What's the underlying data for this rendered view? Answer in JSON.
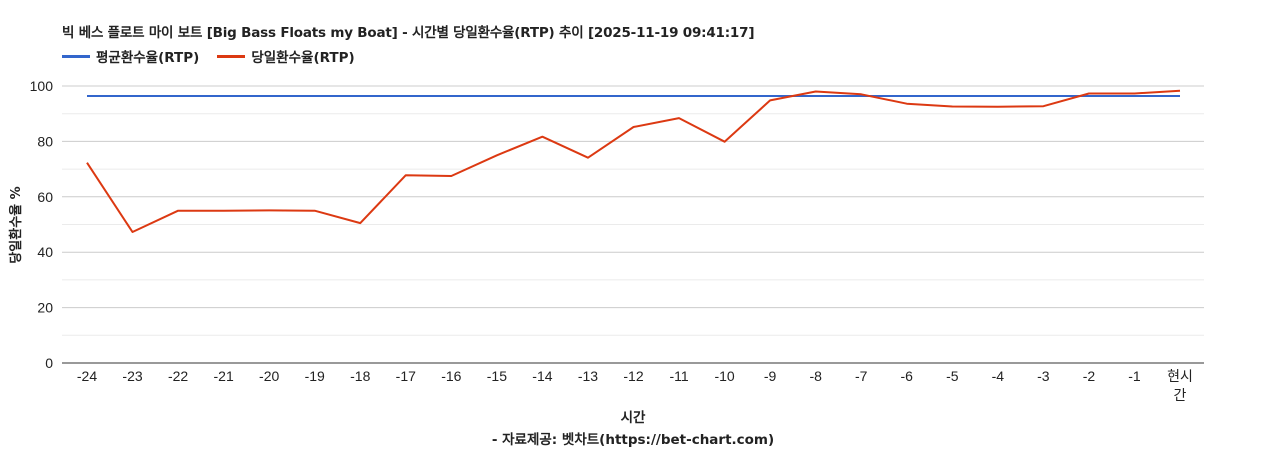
{
  "chart_data": {
    "type": "line",
    "title": "빅 베스 플로트 마이 보트 [Big Bass Floats my Boat] - 시간별 당일환수율(RTP) 추이 [2025-11-19 09:41:17]",
    "xlabel": "시간",
    "ylabel": "당일환수율 %",
    "source": "- 자료제공: 벳차트(https://bet-chart.com)",
    "categories": [
      "-24",
      "-23",
      "-22",
      "-21",
      "-20",
      "-19",
      "-18",
      "-17",
      "-16",
      "-15",
      "-14",
      "-13",
      "-12",
      "-11",
      "-10",
      "-9",
      "-8",
      "-7",
      "-6",
      "-5",
      "-4",
      "-3",
      "-2",
      "-1",
      "현시간"
    ],
    "series": [
      {
        "name": "평균환수율(RTP)",
        "color": "#3366cc",
        "values": [
          96.4,
          96.4,
          96.4,
          96.4,
          96.4,
          96.4,
          96.4,
          96.4,
          96.4,
          96.4,
          96.4,
          96.4,
          96.4,
          96.4,
          96.4,
          96.4,
          96.4,
          96.4,
          96.4,
          96.4,
          96.4,
          96.4,
          96.4,
          96.4,
          96.4
        ]
      },
      {
        "name": "당일환수율(RTP)",
        "color": "#dc3912",
        "values": [
          72.3,
          47.3,
          55.0,
          55.0,
          55.1,
          55.0,
          50.5,
          67.8,
          67.5,
          75.0,
          81.7,
          74.1,
          85.2,
          88.4,
          79.9,
          94.8,
          98.0,
          97.0,
          93.6,
          92.6,
          92.5,
          92.7,
          97.3,
          97.3,
          98.3
        ]
      }
    ],
    "ylim": [
      0,
      100
    ],
    "yticks": [
      0,
      20,
      40,
      60,
      80,
      100
    ],
    "minor_gridlines": [
      10,
      30,
      50,
      70,
      90
    ],
    "grid": true,
    "legend_position": "top-left"
  },
  "header": {
    "title": "빅 베스 플로트 마이 보트 [Big Bass Floats my Boat] - 시간별 당일환수율(RTP) 추이 [2025-11-19 09:41:17]"
  },
  "legend": [
    {
      "label": "평균환수율(RTP)",
      "color": "#3366cc"
    },
    {
      "label": "당일환수율(RTP)",
      "color": "#dc3912"
    }
  ],
  "axes": {
    "x_title": "시간",
    "y_title": "당일환수율 %",
    "last_tick_line1": "현시",
    "last_tick_line2": "간"
  },
  "footer": {
    "source": "- 자료제공: 벳차트(https://bet-chart.com)"
  }
}
